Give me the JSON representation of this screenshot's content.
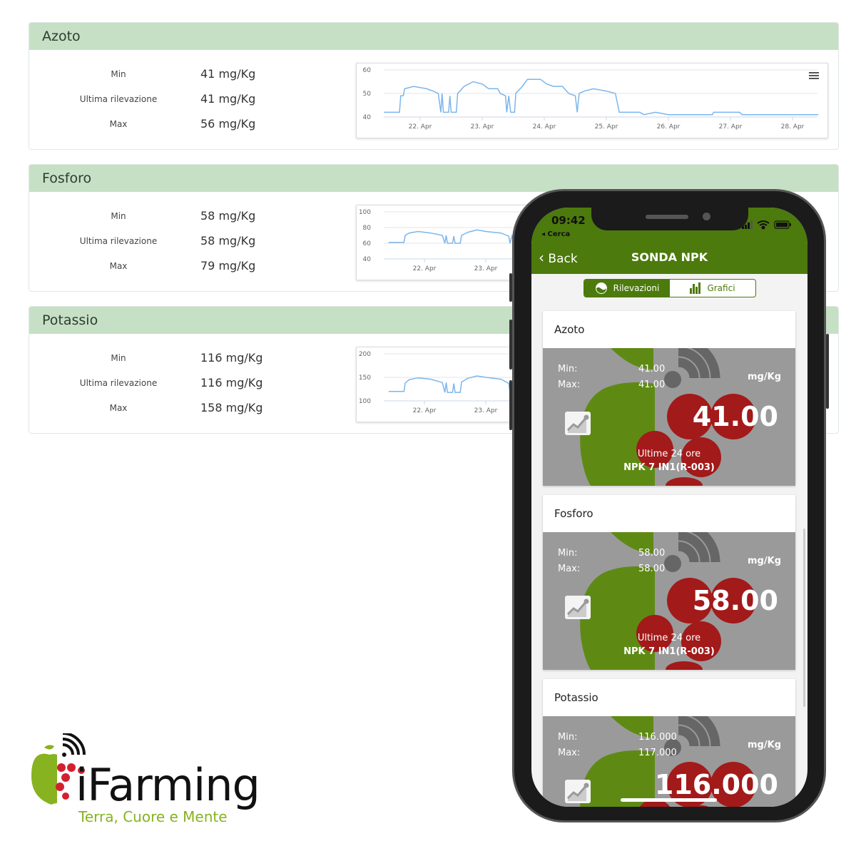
{
  "colors": {
    "panel_header": "#c6e0c6",
    "line": "#7cb5ec",
    "app_green": "#4c7a0c",
    "card_gray": "#9a9a9a",
    "apple_green": "#5e8a14",
    "berry_red": "#a21a1a",
    "logo_tagline": "#86b31f"
  },
  "panels": [
    {
      "title": "Azoto",
      "rows": [
        {
          "label": "Min",
          "value": "41 mg/Kg"
        },
        {
          "label": "Ultima rilevazione",
          "value": "41 mg/Kg"
        },
        {
          "label": "Max",
          "value": "56 mg/Kg"
        }
      ]
    },
    {
      "title": "Fosforo",
      "rows": [
        {
          "label": "Min",
          "value": "58 mg/Kg"
        },
        {
          "label": "Ultima rilevazione",
          "value": "58 mg/Kg"
        },
        {
          "label": "Max",
          "value": "79 mg/Kg"
        }
      ]
    },
    {
      "title": "Potassio",
      "rows": [
        {
          "label": "Min",
          "value": "116 mg/Kg"
        },
        {
          "label": "Ultima rilevazione",
          "value": "116 mg/Kg"
        },
        {
          "label": "Max",
          "value": "158 mg/Kg"
        }
      ]
    }
  ],
  "chart_data": [
    {
      "type": "line",
      "title": "",
      "xlabel": "",
      "ylabel": "",
      "ylim": [
        40,
        60
      ],
      "yticks": [
        "60",
        "50",
        "40"
      ],
      "xticks": [
        "22. Apr",
        "23. Apr",
        "24. Apr",
        "25. Apr",
        "26. Apr",
        "27. Apr",
        "28. Apr"
      ],
      "grid": true,
      "menu_icon": "hamburger-icon",
      "points": [
        [
          "21 Apr 10:00",
          42
        ],
        [
          "21 Apr 16:00",
          42
        ],
        [
          "21 Apr 16:30",
          49
        ],
        [
          "21 Apr 17:30",
          49
        ],
        [
          "21 Apr 18:00",
          52
        ],
        [
          "21 Apr 21:30",
          53
        ],
        [
          "22 Apr 02:30",
          52
        ],
        [
          "22 Apr 05:00",
          51
        ],
        [
          "22 Apr 07:00",
          50
        ],
        [
          "22 Apr 08:00",
          42
        ],
        [
          "22 Apr 08:30",
          50
        ],
        [
          "22 Apr 09:00",
          42
        ],
        [
          "22 Apr 11:00",
          42
        ],
        [
          "22 Apr 11:30",
          49
        ],
        [
          "22 Apr 12:00",
          42
        ],
        [
          "22 Apr 14:00",
          42
        ],
        [
          "22 Apr 14:30",
          50
        ],
        [
          "22 Apr 17:00",
          53
        ],
        [
          "22 Apr 20:30",
          55
        ],
        [
          "23 Apr 00:00",
          54
        ],
        [
          "23 Apr 02:30",
          52
        ],
        [
          "23 Apr 06:00",
          52
        ],
        [
          "23 Apr 07:00",
          50
        ],
        [
          "23 Apr 09:00",
          49
        ],
        [
          "23 Apr 09:30",
          42
        ],
        [
          "23 Apr 10:15",
          49
        ],
        [
          "23 Apr 11:00",
          42
        ],
        [
          "23 Apr 12:30",
          42
        ],
        [
          "23 Apr 13:00",
          50
        ],
        [
          "23 Apr 15:30",
          53
        ],
        [
          "23 Apr 17:30",
          56
        ],
        [
          "23 Apr 22:30",
          56
        ],
        [
          "24 Apr 01:00",
          54
        ],
        [
          "24 Apr 03:30",
          53
        ],
        [
          "24 Apr 07:00",
          53
        ],
        [
          "24 Apr 09:30",
          50
        ],
        [
          "24 Apr 12:00",
          49
        ],
        [
          "24 Apr 12:45",
          42
        ],
        [
          "24 Apr 13:30",
          50
        ],
        [
          "24 Apr 15:30",
          51
        ],
        [
          "24 Apr 19:00",
          52
        ],
        [
          "25 Apr 00:00",
          51
        ],
        [
          "25 Apr 03:30",
          50
        ],
        [
          "25 Apr 05:00",
          42
        ],
        [
          "25 Apr 13:00",
          42
        ],
        [
          "25 Apr 14:30",
          41
        ],
        [
          "25 Apr 19:00",
          42
        ],
        [
          "26 Apr 00:00",
          41
        ],
        [
          "26 Apr 17:00",
          41
        ],
        [
          "26 Apr 17:30",
          42
        ],
        [
          "27 Apr 03:30",
          42
        ],
        [
          "27 Apr 04:30",
          41
        ],
        [
          "28 Apr 10:00",
          41
        ]
      ]
    },
    {
      "type": "line",
      "title": "",
      "xlabel": "",
      "ylabel": "",
      "ylim": [
        40,
        100
      ],
      "yticks": [
        "100",
        "80",
        "60",
        "40"
      ],
      "xticks": [
        "22. Apr",
        "23. Apr"
      ],
      "grid": true,
      "points": [
        [
          "21 Apr 10:00",
          61
        ],
        [
          "21 Apr 16:00",
          61
        ],
        [
          "21 Apr 16:30",
          70
        ],
        [
          "21 Apr 18:00",
          73
        ],
        [
          "21 Apr 21:30",
          75
        ],
        [
          "22 Apr 02:30",
          73
        ],
        [
          "22 Apr 07:00",
          70
        ],
        [
          "22 Apr 08:00",
          60
        ],
        [
          "22 Apr 08:30",
          70
        ],
        [
          "22 Apr 09:00",
          60
        ],
        [
          "22 Apr 11:00",
          60
        ],
        [
          "22 Apr 11:30",
          69
        ],
        [
          "22 Apr 12:00",
          60
        ],
        [
          "22 Apr 14:00",
          60
        ],
        [
          "22 Apr 14:30",
          70
        ],
        [
          "22 Apr 17:00",
          74
        ],
        [
          "22 Apr 20:30",
          77
        ],
        [
          "23 Apr 00:00",
          75
        ],
        [
          "23 Apr 06:00",
          73
        ],
        [
          "23 Apr 09:00",
          69
        ],
        [
          "23 Apr 09:30",
          60
        ],
        [
          "23 Apr 10:15",
          69
        ],
        [
          "23 Apr 11:00",
          60
        ],
        [
          "23 Apr 12:30",
          60
        ],
        [
          "23 Apr 13:00",
          70
        ],
        [
          "23 Apr 15:30",
          74
        ],
        [
          "23 Apr 17:30",
          79
        ],
        [
          "23 Apr 22:30",
          79
        ]
      ]
    },
    {
      "type": "line",
      "title": "",
      "xlabel": "",
      "ylabel": "",
      "ylim": [
        100,
        200
      ],
      "yticks": [
        "200",
        "150",
        "100"
      ],
      "xticks": [
        "22. Apr",
        "23. Apr"
      ],
      "grid": true,
      "points": [
        [
          "21 Apr 10:00",
          120
        ],
        [
          "21 Apr 16:00",
          120
        ],
        [
          "21 Apr 16:30",
          138
        ],
        [
          "21 Apr 18:00",
          145
        ],
        [
          "21 Apr 21:30",
          149
        ],
        [
          "22 Apr 02:30",
          146
        ],
        [
          "22 Apr 07:00",
          139
        ],
        [
          "22 Apr 08:00",
          118
        ],
        [
          "22 Apr 08:30",
          139
        ],
        [
          "22 Apr 09:00",
          118
        ],
        [
          "22 Apr 11:00",
          118
        ],
        [
          "22 Apr 11:30",
          137
        ],
        [
          "22 Apr 12:00",
          118
        ],
        [
          "22 Apr 14:00",
          118
        ],
        [
          "22 Apr 14:30",
          140
        ],
        [
          "22 Apr 17:00",
          148
        ],
        [
          "22 Apr 20:30",
          153
        ],
        [
          "23 Apr 00:00",
          150
        ],
        [
          "23 Apr 06:00",
          146
        ],
        [
          "23 Apr 09:00",
          137
        ],
        [
          "23 Apr 09:30",
          118
        ],
        [
          "23 Apr 10:15",
          137
        ],
        [
          "23 Apr 11:00",
          118
        ],
        [
          "23 Apr 12:30",
          118
        ],
        [
          "23 Apr 13:00",
          140
        ],
        [
          "23 Apr 15:30",
          148
        ],
        [
          "23 Apr 17:30",
          158
        ],
        [
          "23 Apr 22:30",
          158
        ]
      ]
    }
  ],
  "phone": {
    "time": "09:42",
    "back_app": "◂ Cerca",
    "back": "Back",
    "title": "SONDA NPK",
    "tabs": [
      {
        "label": "Rilevazioni",
        "icon": "gauge-icon",
        "active": true
      },
      {
        "label": "Grafici",
        "icon": "bar-chart-icon",
        "active": false
      }
    ],
    "cards": [
      {
        "title": "Azoto",
        "min_label": "Min:",
        "min": "41.00",
        "max_label": "Max:",
        "max": "41.00",
        "unit": "mg/Kg",
        "value": "41.00",
        "period": "Ultime 24 ore",
        "device": "NPK 7 IN1(R-003)"
      },
      {
        "title": "Fosforo",
        "min_label": "Min:",
        "min": "58.00",
        "max_label": "Max:",
        "max": "58.00",
        "unit": "mg/Kg",
        "value": "58.00",
        "period": "Ultime 24 ore",
        "device": "NPK 7 IN1(R-003)"
      },
      {
        "title": "Potassio",
        "min_label": "Min:",
        "min": "116.000",
        "max_label": "Max:",
        "max": "117.000",
        "unit": "mg/Kg",
        "value": "116.000",
        "period": "Ultime 24 ore",
        "device": "NPK 7 IN1(R-003)"
      }
    ]
  },
  "logo": {
    "name": "iFarming",
    "tagline": "Terra, Cuore e Mente"
  }
}
